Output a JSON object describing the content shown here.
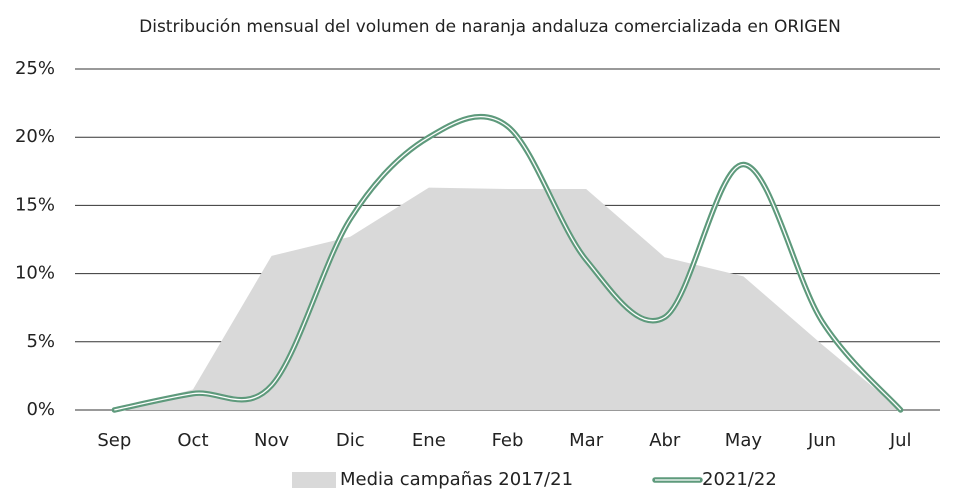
{
  "chart_data": {
    "type": "area-line",
    "title": "Distribución mensual del volumen de naranja andaluza comercializada en ORIGEN",
    "categories": [
      "Sep",
      "Oct",
      "Nov",
      "Dic",
      "Ene",
      "Feb",
      "Mar",
      "Abr",
      "May",
      "Jun",
      "Jul"
    ],
    "series": [
      {
        "name": "Media campañas 2017/21",
        "kind": "area",
        "color": "#d9d9d9",
        "values": [
          0,
          1.5,
          11.3,
          12.7,
          16.3,
          16.2,
          16.2,
          11.2,
          9.8,
          4.8,
          0
        ]
      },
      {
        "name": "2021/22",
        "kind": "line",
        "color": "#5e9a7c",
        "values": [
          0,
          1.2,
          1.8,
          14,
          20,
          20.8,
          11,
          6.8,
          18,
          6.5,
          0
        ]
      }
    ],
    "ylim": [
      0,
      25
    ],
    "yticks": [
      {
        "value": 0,
        "label": "0%"
      },
      {
        "value": 5,
        "label": "5%"
      },
      {
        "value": 10,
        "label": "10%"
      },
      {
        "value": 15,
        "label": "15%"
      },
      {
        "value": 20,
        "label": "20%"
      },
      {
        "value": 25,
        "label": "25%"
      }
    ],
    "grid": true,
    "legend": "bottom"
  }
}
